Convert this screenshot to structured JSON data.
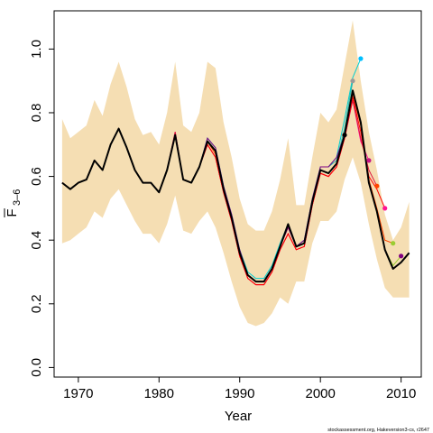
{
  "chart_data": {
    "type": "line",
    "xlabel": "Year",
    "ylabel_main": "F",
    "ylabel_sub": "3–6",
    "credit": "stockassessment.org, Hakeversion3-cs, r2647",
    "xlim": [
      1967,
      2012.5
    ],
    "ylim": [
      -0.03,
      1.12
    ],
    "x_ticks": [
      1970,
      1980,
      1990,
      2000,
      2010
    ],
    "y_ticks": [
      0.0,
      0.2,
      0.4,
      0.6,
      0.8,
      1.0
    ],
    "y_tick_labels": [
      "0.0",
      "0.2",
      "0.4",
      "0.6",
      "0.8",
      "1.0"
    ],
    "colors": {
      "band": "#f5deb3",
      "main": "#000000",
      "retro": [
        "#00ced1",
        "#20b2aa",
        "#ff1493",
        "#dc143c",
        "#ff0000",
        "#ff4500",
        "#9acd32",
        "#800080",
        "#00bfff",
        "#999999"
      ]
    },
    "band": {
      "years": [
        1968,
        1969,
        1970,
        1971,
        1972,
        1973,
        1974,
        1975,
        1976,
        1977,
        1978,
        1979,
        1980,
        1981,
        1982,
        1983,
        1984,
        1985,
        1986,
        1987,
        1988,
        1989,
        1990,
        1991,
        1992,
        1993,
        1994,
        1995,
        1996,
        1997,
        1998,
        1999,
        2000,
        2001,
        2002,
        2003,
        2004,
        2005,
        2006,
        2007,
        2008,
        2009,
        2010,
        2011
      ],
      "upper": [
        0.78,
        0.72,
        0.74,
        0.76,
        0.84,
        0.79,
        0.89,
        0.96,
        0.88,
        0.78,
        0.73,
        0.74,
        0.7,
        0.8,
        0.96,
        0.76,
        0.74,
        0.8,
        0.96,
        0.94,
        0.77,
        0.66,
        0.53,
        0.45,
        0.43,
        0.43,
        0.49,
        0.59,
        0.72,
        0.51,
        0.51,
        0.66,
        0.8,
        0.77,
        0.81,
        0.95,
        1.09,
        0.9,
        0.74,
        0.62,
        0.48,
        0.4,
        0.44,
        0.52
      ],
      "lower": [
        0.39,
        0.4,
        0.42,
        0.44,
        0.49,
        0.47,
        0.53,
        0.56,
        0.51,
        0.46,
        0.42,
        0.42,
        0.39,
        0.45,
        0.54,
        0.43,
        0.42,
        0.46,
        0.49,
        0.44,
        0.36,
        0.27,
        0.19,
        0.14,
        0.13,
        0.14,
        0.17,
        0.22,
        0.2,
        0.27,
        0.27,
        0.39,
        0.46,
        0.46,
        0.49,
        0.59,
        0.66,
        0.58,
        0.45,
        0.34,
        0.25,
        0.22,
        0.22,
        0.22
      ]
    },
    "series": [
      {
        "role": "main",
        "x": [
          1968,
          1969,
          1970,
          1971,
          1972,
          1973,
          1974,
          1975,
          1976,
          1977,
          1978,
          1979,
          1980,
          1981,
          1982,
          1983,
          1984,
          1985,
          1986,
          1987,
          1988,
          1989,
          1990,
          1991,
          1992,
          1993,
          1994,
          1995,
          1996,
          1997,
          1998,
          1999,
          2000,
          2001,
          2002,
          2003,
          2004,
          2005,
          2006,
          2007,
          2008,
          2009,
          2010,
          2011
        ],
        "y": [
          0.58,
          0.56,
          0.58,
          0.59,
          0.65,
          0.62,
          0.7,
          0.75,
          0.69,
          0.62,
          0.58,
          0.58,
          0.55,
          0.62,
          0.73,
          0.59,
          0.58,
          0.63,
          0.71,
          0.68,
          0.56,
          0.47,
          0.36,
          0.29,
          0.27,
          0.27,
          0.31,
          0.38,
          0.45,
          0.38,
          0.39,
          0.52,
          0.62,
          0.61,
          0.64,
          0.73,
          0.87,
          0.77,
          0.58,
          0.49,
          0.37,
          0.31,
          0.33,
          0.36
        ]
      },
      {
        "role": "retro",
        "x": [
          1968,
          1969,
          1970,
          1971,
          1972,
          1973,
          1974,
          1975,
          1976,
          1977,
          1978,
          1979,
          1980,
          1981,
          1982,
          1983,
          1984,
          1985,
          1986,
          1987,
          1988,
          1989,
          1990,
          1991,
          1992,
          1993,
          1994,
          1995,
          1996,
          1997,
          1998,
          1999,
          2000,
          2001,
          2002,
          2003,
          2004,
          2005
        ],
        "y": [
          0.58,
          0.56,
          0.58,
          0.59,
          0.65,
          0.62,
          0.7,
          0.75,
          0.69,
          0.62,
          0.58,
          0.58,
          0.55,
          0.62,
          0.73,
          0.59,
          0.58,
          0.63,
          0.72,
          0.69,
          0.57,
          0.48,
          0.37,
          0.3,
          0.28,
          0.28,
          0.32,
          0.39,
          0.45,
          0.38,
          0.4,
          0.53,
          0.63,
          0.63,
          0.66,
          0.78,
          0.91,
          0.97
        ]
      },
      {
        "role": "retro",
        "x": [
          1968,
          1969,
          1970,
          1971,
          1972,
          1973,
          1974,
          1975,
          1976,
          1977,
          1978,
          1979,
          1980,
          1981,
          1982,
          1983,
          1984,
          1985,
          1986,
          1987,
          1988,
          1989,
          1990,
          1991,
          1992,
          1993,
          1994,
          1995,
          1996,
          1997,
          1998,
          1999,
          2000,
          2001,
          2002,
          2003,
          2004
        ],
        "y": [
          0.58,
          0.56,
          0.58,
          0.59,
          0.65,
          0.62,
          0.7,
          0.75,
          0.69,
          0.62,
          0.58,
          0.58,
          0.55,
          0.62,
          0.73,
          0.59,
          0.58,
          0.63,
          0.72,
          0.69,
          0.57,
          0.48,
          0.37,
          0.29,
          0.27,
          0.27,
          0.31,
          0.38,
          0.44,
          0.38,
          0.39,
          0.52,
          0.63,
          0.63,
          0.65,
          0.75,
          0.9
        ]
      },
      {
        "role": "retro",
        "x": [
          1968,
          1969,
          1970,
          1971,
          1972,
          1973,
          1974,
          1975,
          1976,
          1977,
          1978,
          1979,
          1980,
          1981,
          1982,
          1983,
          1984,
          1985,
          1986,
          1987,
          1988,
          1989,
          1990,
          1991,
          1992,
          1993,
          1994,
          1995,
          1996,
          1997,
          1998,
          1999,
          2000,
          2001,
          2002,
          2003,
          2004,
          2005,
          2006
        ],
        "y": [
          0.58,
          0.56,
          0.58,
          0.59,
          0.65,
          0.62,
          0.7,
          0.75,
          0.69,
          0.62,
          0.58,
          0.58,
          0.55,
          0.62,
          0.74,
          0.59,
          0.58,
          0.63,
          0.7,
          0.66,
          0.55,
          0.46,
          0.35,
          0.28,
          0.26,
          0.26,
          0.3,
          0.37,
          0.42,
          0.37,
          0.38,
          0.51,
          0.61,
          0.6,
          0.63,
          0.72,
          0.84,
          0.71,
          0.65
        ]
      },
      {
        "role": "retro",
        "x": [
          1968,
          1969,
          1970,
          1971,
          1972,
          1973,
          1974,
          1975,
          1976,
          1977,
          1978,
          1979,
          1980,
          1981,
          1982,
          1983,
          1984,
          1985,
          1986,
          1987,
          1988,
          1989,
          1990,
          1991,
          1992,
          1993,
          1994,
          1995,
          1996,
          1997,
          1998,
          1999,
          2000,
          2001,
          2002,
          2003,
          2004,
          2005,
          2006,
          2007
        ],
        "y": [
          0.58,
          0.56,
          0.58,
          0.59,
          0.65,
          0.62,
          0.7,
          0.75,
          0.69,
          0.62,
          0.58,
          0.58,
          0.55,
          0.62,
          0.74,
          0.59,
          0.58,
          0.63,
          0.7,
          0.66,
          0.55,
          0.46,
          0.35,
          0.28,
          0.26,
          0.26,
          0.3,
          0.37,
          0.42,
          0.37,
          0.38,
          0.51,
          0.61,
          0.6,
          0.63,
          0.72,
          0.84,
          0.72,
          0.62,
          0.57
        ]
      },
      {
        "role": "retro",
        "x": [
          1968,
          1969,
          1970,
          1971,
          1972,
          1973,
          1974,
          1975,
          1976,
          1977,
          1978,
          1979,
          1980,
          1981,
          1982,
          1983,
          1984,
          1985,
          1986,
          1987,
          1988,
          1989,
          1990,
          1991,
          1992,
          1993,
          1994,
          1995,
          1996,
          1997,
          1998,
          1999,
          2000,
          2001,
          2002,
          2003,
          2004,
          2005,
          2006,
          2007,
          2008
        ],
        "y": [
          0.58,
          0.56,
          0.58,
          0.59,
          0.65,
          0.62,
          0.7,
          0.75,
          0.69,
          0.62,
          0.58,
          0.58,
          0.55,
          0.62,
          0.73,
          0.59,
          0.58,
          0.63,
          0.7,
          0.66,
          0.55,
          0.46,
          0.35,
          0.28,
          0.26,
          0.26,
          0.3,
          0.37,
          0.42,
          0.37,
          0.38,
          0.51,
          0.61,
          0.6,
          0.63,
          0.72,
          0.85,
          0.74,
          0.6,
          0.56,
          0.5
        ]
      },
      {
        "role": "retro",
        "x": [
          1968,
          1969,
          1970,
          1971,
          1972,
          1973,
          1974,
          1975,
          1976,
          1977,
          1978,
          1979,
          1980,
          1981,
          1982,
          1983,
          1984,
          1985,
          1986,
          1987,
          1988,
          1989,
          1990,
          1991,
          1992,
          1993,
          1994,
          1995,
          1996,
          1997,
          1998,
          1999,
          2000,
          2001,
          2002,
          2003,
          2004,
          2005,
          2006,
          2007,
          2008,
          2009
        ],
        "y": [
          0.58,
          0.56,
          0.58,
          0.59,
          0.65,
          0.62,
          0.7,
          0.75,
          0.69,
          0.62,
          0.58,
          0.58,
          0.55,
          0.62,
          0.73,
          0.59,
          0.58,
          0.63,
          0.71,
          0.67,
          0.56,
          0.47,
          0.36,
          0.29,
          0.27,
          0.27,
          0.31,
          0.38,
          0.44,
          0.38,
          0.39,
          0.52,
          0.62,
          0.61,
          0.64,
          0.73,
          0.86,
          0.76,
          0.59,
          0.5,
          0.4,
          0.39
        ]
      },
      {
        "role": "retro",
        "x": [
          1968,
          1969,
          1970,
          1971,
          1972,
          1973,
          1974,
          1975,
          1976,
          1977,
          1978,
          1979,
          1980,
          1981,
          1982,
          1983,
          1984,
          1985,
          1986,
          1987,
          1988,
          1989,
          1990,
          1991,
          1992,
          1993,
          1994,
          1995,
          1996,
          1997,
          1998,
          1999,
          2000,
          2001,
          2002,
          2003,
          2004,
          2005,
          2006,
          2007,
          2008,
          2009,
          2010
        ],
        "y": [
          0.58,
          0.56,
          0.58,
          0.59,
          0.65,
          0.62,
          0.7,
          0.75,
          0.69,
          0.62,
          0.58,
          0.58,
          0.55,
          0.62,
          0.73,
          0.59,
          0.58,
          0.63,
          0.71,
          0.68,
          0.56,
          0.47,
          0.36,
          0.29,
          0.27,
          0.27,
          0.31,
          0.38,
          0.45,
          0.38,
          0.39,
          0.52,
          0.62,
          0.61,
          0.64,
          0.73,
          0.87,
          0.77,
          0.58,
          0.49,
          0.37,
          0.32,
          0.35
        ]
      },
      {
        "role": "retro",
        "x": [
          1968,
          1969,
          1970,
          1971,
          1972,
          1973,
          1974,
          1975,
          1976,
          1977,
          1978,
          1979,
          1980,
          1981,
          1982,
          1983,
          1984,
          1985,
          1986,
          1987,
          1988,
          1989,
          1990,
          1991,
          1992,
          1993,
          1994,
          1995,
          1996,
          1997,
          1998,
          1999,
          2000,
          2001,
          2002,
          2003
        ],
        "y": [
          0.58,
          0.56,
          0.58,
          0.59,
          0.65,
          0.62,
          0.7,
          0.75,
          0.69,
          0.62,
          0.58,
          0.58,
          0.55,
          0.62,
          0.73,
          0.59,
          0.58,
          0.63,
          0.72,
          0.69,
          0.57,
          0.48,
          0.37,
          0.29,
          0.27,
          0.27,
          0.31,
          0.38,
          0.44,
          0.38,
          0.4,
          0.53,
          0.63,
          0.63,
          0.66,
          0.73
        ]
      }
    ],
    "endpoints": [
      {
        "x": 2003,
        "y": 0.73,
        "color": "#000000"
      },
      {
        "x": 2004,
        "y": 0.9,
        "color": "#999999"
      },
      {
        "x": 2005,
        "y": 0.97,
        "color": "#00bfff"
      },
      {
        "x": 2006,
        "y": 0.65,
        "color": "#c71585"
      },
      {
        "x": 2007,
        "y": 0.57,
        "color": "#ff4500"
      },
      {
        "x": 2008,
        "y": 0.5,
        "color": "#ff1493"
      },
      {
        "x": 2009,
        "y": 0.39,
        "color": "#9acd32"
      },
      {
        "x": 2010,
        "y": 0.35,
        "color": "#800080"
      }
    ]
  }
}
